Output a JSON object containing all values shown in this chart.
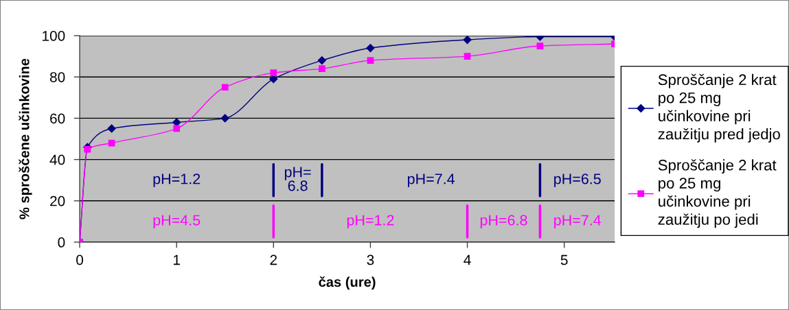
{
  "chart_data": {
    "type": "line",
    "xlabel": "čas (ure)",
    "ylabel": "% sproščene učinkovine",
    "series": [
      {
        "name": "Sproščanje 2 krat\npo 25 mg\nučinkovine pri\nzaužitju pred jedjo",
        "color": "#000080",
        "marker": "diamond",
        "x": [
          0,
          0.08,
          0.33,
          1,
          1.5,
          2,
          2.5,
          3,
          4,
          4.75,
          5.52
        ],
        "values": [
          0,
          46,
          55,
          58,
          60,
          79,
          88,
          94,
          98,
          99.5,
          99.5
        ]
      },
      {
        "name": "Sproščanje 2 krat\npo 25 mg\nučinkovine pri\nzaužitju po jedi",
        "color": "#ff00ff",
        "marker": "square",
        "x": [
          0,
          0.08,
          0.33,
          1,
          1.5,
          2,
          2.5,
          3,
          4,
          4.75,
          5.52
        ],
        "values": [
          0,
          45,
          48,
          55,
          75,
          82,
          84,
          88,
          90,
          95,
          96
        ]
      }
    ],
    "xlim": [
      0,
      5.52
    ],
    "xticks": [
      0,
      1,
      2,
      3,
      4,
      5
    ],
    "ylim": [
      0,
      100
    ],
    "yticks": [
      0,
      20,
      40,
      60,
      80,
      100
    ],
    "grid": "y",
    "legend": "right",
    "line_style": "solid",
    "annotations": [
      "pH=1.2",
      "pH=\n6.8",
      "pH=7.4",
      "pH=6.5",
      "pH=4.5",
      "pH=1.2",
      "pH=6.8",
      "pH=7.4"
    ],
    "ref_lines": [
      {
        "axis": "x",
        "value": 2,
        "color": "#000080"
      },
      {
        "axis": "x",
        "value": 2.5,
        "color": "#000080"
      },
      {
        "axis": "x",
        "value": 4.75,
        "color": "#000080"
      },
      {
        "axis": "x",
        "value": 2,
        "color": "#ff00ff"
      },
      {
        "axis": "x",
        "value": 4,
        "color": "#ff00ff"
      },
      {
        "axis": "x",
        "value": 4.75,
        "color": "#ff00ff"
      }
    ]
  }
}
